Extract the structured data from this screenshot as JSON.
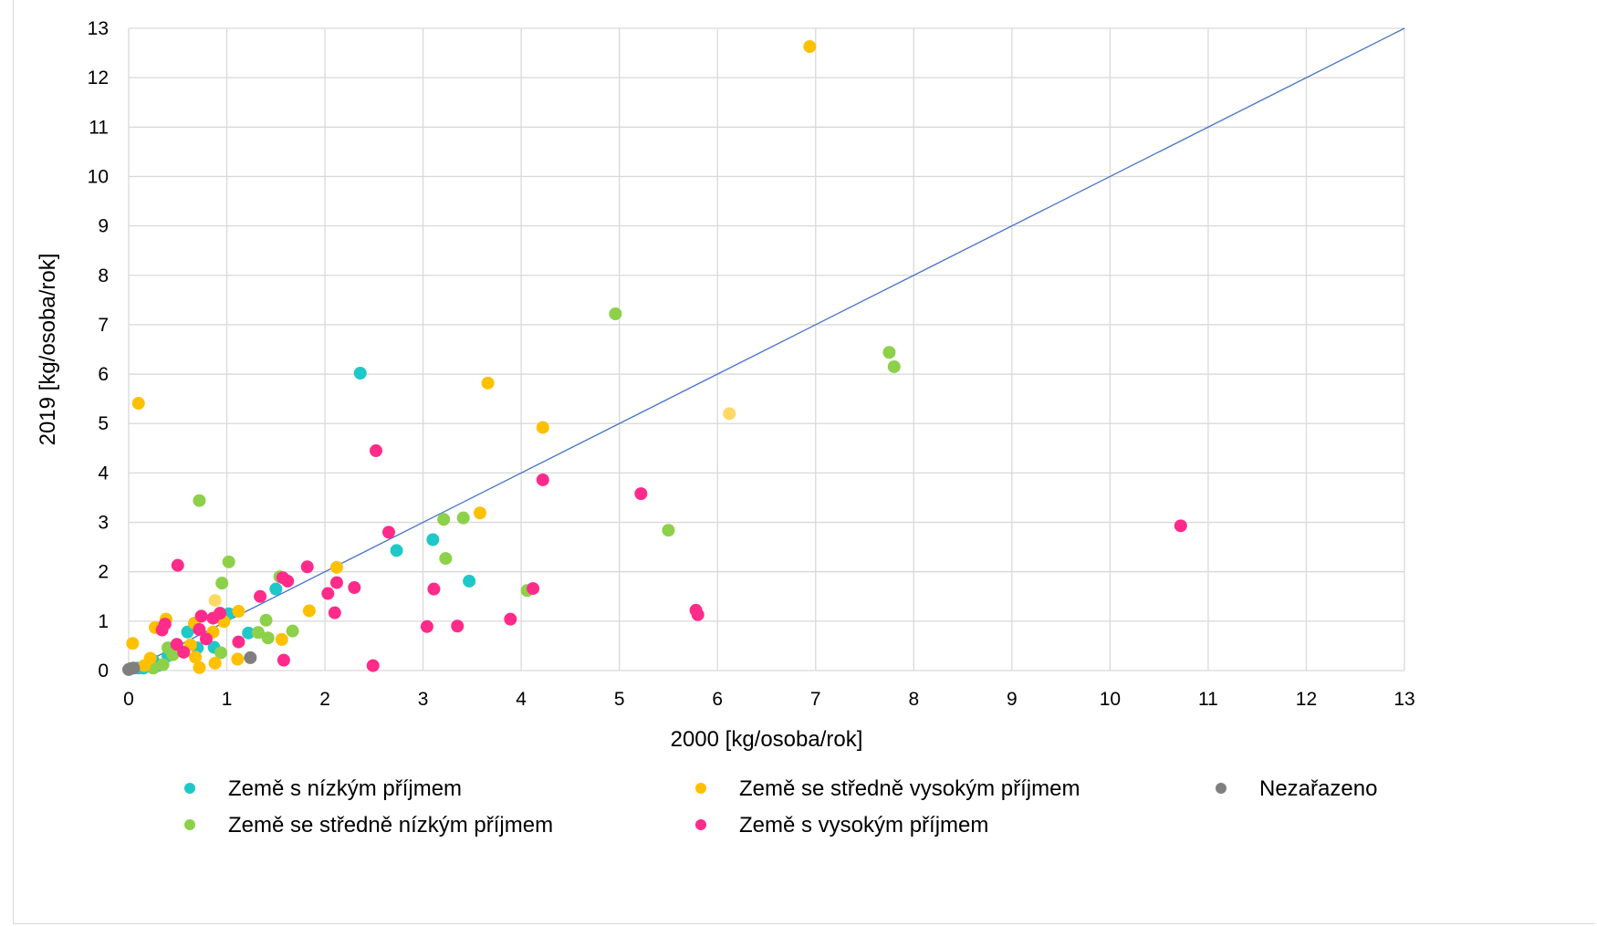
{
  "chart_data": {
    "type": "scatter",
    "title": "",
    "xlabel": "2000 [kg/osoba/rok]",
    "ylabel": "2019 [kg/osoba/rok]",
    "xlim": [
      0,
      13
    ],
    "ylim": [
      0,
      13
    ],
    "xticks": [
      "0",
      "1",
      "2",
      "3",
      "4",
      "5",
      "6",
      "7",
      "8",
      "9",
      "10",
      "11",
      "12",
      "13"
    ],
    "yticks": [
      "0",
      "1",
      "2",
      "3",
      "4",
      "5",
      "6",
      "7",
      "8",
      "9",
      "10",
      "11",
      "12",
      "13"
    ],
    "grid": true,
    "reference_line": {
      "x": [
        0,
        13
      ],
      "y": [
        0,
        13
      ],
      "color": "#4472c4"
    },
    "legend_position": "bottom",
    "series": [
      {
        "name": "Země s nízkým příjmem",
        "color": "#1fc8c8",
        "points": [
          [
            2.36,
            6.02
          ],
          [
            2.73,
            2.43
          ],
          [
            3.1,
            2.65
          ],
          [
            3.47,
            1.81
          ],
          [
            1.5,
            1.65
          ],
          [
            1.02,
            1.15
          ],
          [
            1.22,
            0.76
          ],
          [
            0.6,
            0.78
          ],
          [
            0.7,
            0.46
          ],
          [
            0.87,
            0.47
          ],
          [
            0.2,
            0.12
          ],
          [
            0.15,
            0.05
          ],
          [
            0.3,
            0.1
          ],
          [
            0.4,
            0.3
          ],
          [
            0.1,
            0.05
          ],
          [
            0.25,
            0.2
          ]
        ]
      },
      {
        "name": "Země se středně nízkým příjmem",
        "color": "#8dd04a",
        "points": [
          [
            4.96,
            7.22
          ],
          [
            7.75,
            6.44
          ],
          [
            7.8,
            6.15
          ],
          [
            5.5,
            2.84
          ],
          [
            4.06,
            1.62
          ],
          [
            3.41,
            3.09
          ],
          [
            3.21,
            3.06
          ],
          [
            3.23,
            2.27
          ],
          [
            0.72,
            3.44
          ],
          [
            1.02,
            2.2
          ],
          [
            1.54,
            1.9
          ],
          [
            0.95,
            1.77
          ],
          [
            1.4,
            1.02
          ],
          [
            1.67,
            0.8
          ],
          [
            1.32,
            0.77
          ],
          [
            1.42,
            0.66
          ],
          [
            0.94,
            0.36
          ],
          [
            0.4,
            0.46
          ],
          [
            0.45,
            0.32
          ],
          [
            0.5,
            0.45
          ],
          [
            0.35,
            0.12
          ],
          [
            0.25,
            0.05
          ]
        ]
      },
      {
        "name": "Země se středně vysokým příjmem",
        "color": "#ffc000",
        "points": [
          [
            6.94,
            12.63
          ],
          [
            0.1,
            5.41
          ],
          [
            3.66,
            5.82
          ],
          [
            4.22,
            4.92
          ],
          [
            3.58,
            3.19
          ],
          [
            2.12,
            2.09
          ],
          [
            1.84,
            1.21
          ],
          [
            1.12,
            1.2
          ],
          [
            0.38,
            1.04
          ],
          [
            0.67,
            0.96
          ],
          [
            0.97,
            0.99
          ],
          [
            0.27,
            0.87
          ],
          [
            0.86,
            0.78
          ],
          [
            1.56,
            0.63
          ],
          [
            0.04,
            0.55
          ],
          [
            0.63,
            0.52
          ],
          [
            0.68,
            0.27
          ],
          [
            1.11,
            0.23
          ],
          [
            0.88,
            0.15
          ],
          [
            0.72,
            0.06
          ],
          [
            0.22,
            0.25
          ],
          [
            0.16,
            0.1
          ]
        ]
      },
      {
        "name": "Země s vysokým příjmem",
        "color": "#ff2b8a",
        "points": [
          [
            10.72,
            2.93
          ],
          [
            5.22,
            3.58
          ],
          [
            5.78,
            1.22
          ],
          [
            5.8,
            1.13
          ],
          [
            4.22,
            3.86
          ],
          [
            4.12,
            1.66
          ],
          [
            3.89,
            1.04
          ],
          [
            3.35,
            0.9
          ],
          [
            3.04,
            0.89
          ],
          [
            3.11,
            1.65
          ],
          [
            2.52,
            4.45
          ],
          [
            2.65,
            2.8
          ],
          [
            2.3,
            1.68
          ],
          [
            2.12,
            1.78
          ],
          [
            2.1,
            1.17
          ],
          [
            2.03,
            1.56
          ],
          [
            1.82,
            2.1
          ],
          [
            1.62,
            1.81
          ],
          [
            1.57,
            1.88
          ],
          [
            1.34,
            1.5
          ],
          [
            1.58,
            0.21
          ],
          [
            2.49,
            0.1
          ],
          [
            0.5,
            2.13
          ],
          [
            0.93,
            1.16
          ],
          [
            0.86,
            1.06
          ],
          [
            0.74,
            1.1
          ],
          [
            0.79,
            0.64
          ],
          [
            0.72,
            0.83
          ],
          [
            0.37,
            0.94
          ],
          [
            0.34,
            0.82
          ],
          [
            0.49,
            0.53
          ],
          [
            0.56,
            0.37
          ],
          [
            1.12,
            0.58
          ]
        ]
      },
      {
        "name": "Nezařazeno",
        "color": "#7f7f7f",
        "points": [
          [
            1.24,
            0.26
          ],
          [
            0.02,
            0.04
          ],
          [
            0.05,
            0.05
          ],
          [
            0.0,
            0.02
          ]
        ]
      }
    ],
    "faded_points": [
      {
        "color": "#ffd966",
        "points": [
          [
            6.12,
            5.2
          ],
          [
            0.88,
            1.42
          ]
        ]
      }
    ]
  }
}
